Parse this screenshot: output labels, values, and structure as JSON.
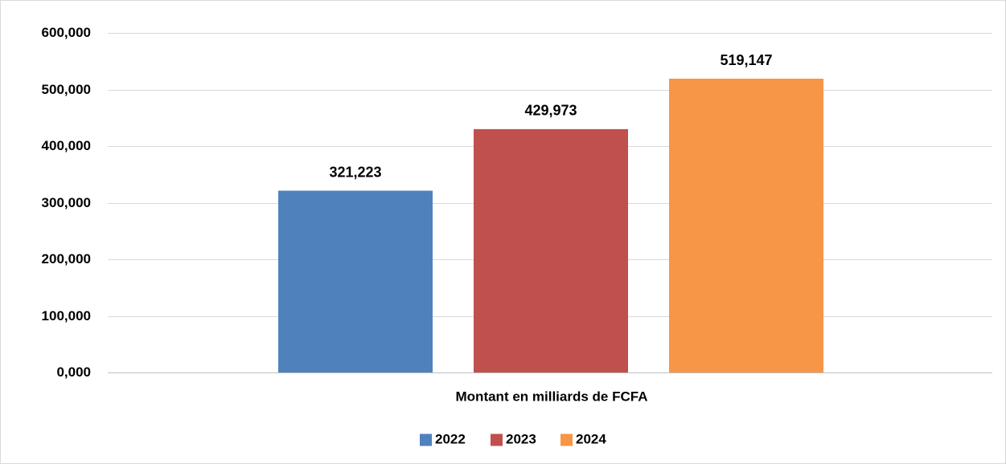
{
  "chart_data": {
    "type": "bar",
    "categories": [
      "Montant en milliards de FCFA"
    ],
    "series": [
      {
        "name": "2022",
        "values": [
          321.223
        ],
        "label": "321,223",
        "color": "#4F81BD"
      },
      {
        "name": "2023",
        "values": [
          429.973
        ],
        "label": "429,973",
        "color": "#C0504D"
      },
      {
        "name": "2024",
        "values": [
          519.147
        ],
        "label": "519,147",
        "color": "#F79646"
      }
    ],
    "yticks": [
      {
        "value": 0,
        "label": "0,000"
      },
      {
        "value": 100,
        "label": "100,000"
      },
      {
        "value": 200,
        "label": "200,000"
      },
      {
        "value": 300,
        "label": "300,000"
      },
      {
        "value": 400,
        "label": "400,000"
      },
      {
        "value": 500,
        "label": "500,000"
      },
      {
        "value": 600,
        "label": "600,000"
      }
    ],
    "ylim": [
      0,
      600
    ],
    "title": "",
    "xlabel": "",
    "ylabel": "",
    "grid": true,
    "legend_position": "bottom",
    "gridline_color": "#d9d9d9",
    "axis_color": "#bfbfbf"
  }
}
